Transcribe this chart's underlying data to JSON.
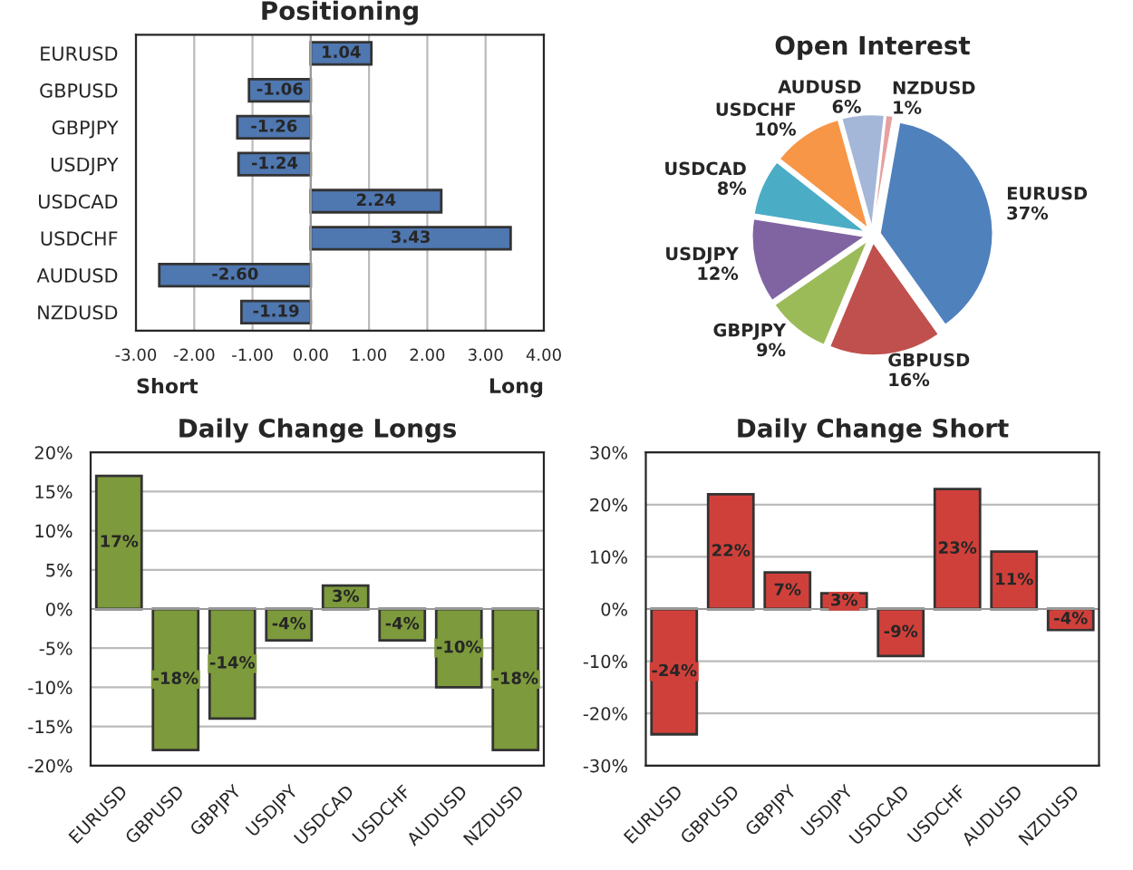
{
  "chart_data": [
    {
      "type": "bar",
      "orientation": "horizontal",
      "title": "Positioning",
      "categories": [
        "EURUSD",
        "GBPUSD",
        "GBPJPY",
        "USDJPY",
        "USDCAD",
        "USDCHF",
        "AUDUSD",
        "NZDUSD"
      ],
      "values": [
        1.04,
        -1.06,
        -1.26,
        -1.24,
        2.24,
        3.43,
        -2.6,
        -1.19
      ],
      "value_labels": [
        "1.04",
        "-1.06",
        "-1.26",
        "-1.24",
        "2.24",
        "3.43",
        "-2.60",
        "-1.19"
      ],
      "color": "#4f77b0",
      "xlim": [
        -3,
        4
      ],
      "xticks": [
        {
          "value": -3,
          "label": "-3.00"
        },
        {
          "value": -2,
          "label": "-2.00"
        },
        {
          "value": -1,
          "label": "-1.00"
        },
        {
          "value": 0,
          "label": "0.00"
        },
        {
          "value": 1,
          "label": "1.00"
        },
        {
          "value": 2,
          "label": "2.00"
        },
        {
          "value": 3,
          "label": "3.00"
        },
        {
          "value": 4,
          "label": "4.00"
        }
      ],
      "grid": "x",
      "annotations": [
        "Short",
        "Long"
      ]
    },
    {
      "type": "pie",
      "title": "Open Interest",
      "categories": [
        "EURUSD",
        "GBPUSD",
        "GBPJPY",
        "USDJPY",
        "USDCAD",
        "USDCHF",
        "AUDUSD",
        "NZDUSD"
      ],
      "values": [
        37,
        16,
        9,
        12,
        8,
        10,
        6,
        1
      ],
      "value_labels": [
        "37%",
        "16%",
        "9%",
        "12%",
        "8%",
        "10%",
        "6%",
        "1%"
      ],
      "colors": [
        "#4f81bd",
        "#c0504d",
        "#9bbb59",
        "#8064a2",
        "#4bacc6",
        "#f79646",
        "#a5b7d8",
        "#e6a0a0"
      ]
    },
    {
      "type": "bar",
      "title": "Daily Change Longs",
      "categories": [
        "EURUSD",
        "GBPUSD",
        "GBPJPY",
        "USDJPY",
        "USDCAD",
        "USDCHF",
        "AUDUSD",
        "NZDUSD"
      ],
      "values": [
        17,
        -18,
        -14,
        -4,
        3,
        -4,
        -10,
        -18
      ],
      "value_labels": [
        "17%",
        "-18%",
        "-14%",
        "-4%",
        "3%",
        "-4%",
        "-10%",
        "-18%"
      ],
      "color": "#7d9a3c",
      "ylim": [
        -20,
        20
      ],
      "yticks": [
        {
          "value": -20,
          "label": "-20%"
        },
        {
          "value": -15,
          "label": "-15%"
        },
        {
          "value": -10,
          "label": "-10%"
        },
        {
          "value": -5,
          "label": "-5%"
        },
        {
          "value": 0,
          "label": "0%"
        },
        {
          "value": 5,
          "label": "5%"
        },
        {
          "value": 10,
          "label": "10%"
        },
        {
          "value": 15,
          "label": "15%"
        },
        {
          "value": 20,
          "label": "20%"
        }
      ],
      "grid": "y"
    },
    {
      "type": "bar",
      "title": "Daily Change Short",
      "categories": [
        "EURUSD",
        "GBPUSD",
        "GBPJPY",
        "USDJPY",
        "USDCAD",
        "USDCHF",
        "AUDUSD",
        "NZDUSD"
      ],
      "values": [
        -24,
        22,
        7,
        3,
        -9,
        23,
        11,
        -4
      ],
      "value_labels": [
        "-24%",
        "22%",
        "7%",
        "3%",
        "-9%",
        "23%",
        "11%",
        "-4%"
      ],
      "color": "#d0403a",
      "ylim": [
        -30,
        30
      ],
      "yticks": [
        {
          "value": -30,
          "label": "-30%"
        },
        {
          "value": -20,
          "label": "-20%"
        },
        {
          "value": -10,
          "label": "-10%"
        },
        {
          "value": 0,
          "label": "0%"
        },
        {
          "value": 10,
          "label": "10%"
        },
        {
          "value": 20,
          "label": "20%"
        },
        {
          "value": 30,
          "label": "30%"
        }
      ],
      "grid": "y"
    }
  ]
}
